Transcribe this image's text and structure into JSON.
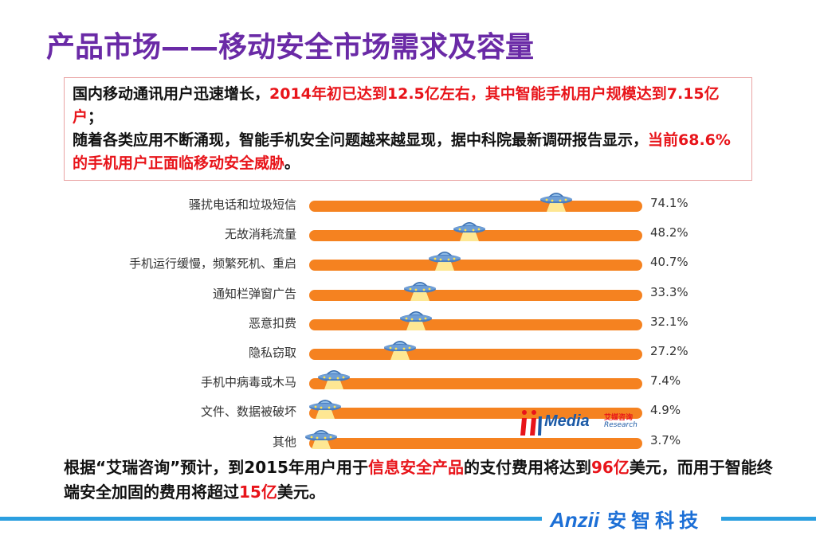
{
  "slide": {
    "title": "产品市场——移动安全市场需求及容量"
  },
  "intro": {
    "p1_black": "国内移动通讯用户迅速增长，",
    "p1_red": "2014年初已达到12.5亿左右，其中智能手机用户规模达到7.15亿户",
    "p1_end": "；",
    "p2_black": "随着各类应用不断涌现，智能手机安全问题越来越显现，据中科院最新调研报告显示，",
    "p2_red": "当前68.6%的手机用户正面临移动安全威胁",
    "p2_end": "。"
  },
  "chart_data": {
    "type": "bar",
    "categories": [
      "骚扰电话和垃圾短信",
      "无故消耗流量",
      "手机运行缓慢，频繁死机、重启",
      "通知栏弹窗广告",
      "恶意扣费",
      "隐私窃取",
      "手机中病毒或木马",
      "文件、数据被破坏",
      "其他"
    ],
    "values": [
      74.1,
      48.2,
      40.7,
      33.3,
      32.1,
      27.2,
      7.4,
      4.9,
      3.7
    ],
    "value_labels": [
      "74.1%",
      "48.2%",
      "40.7%",
      "33.3%",
      "32.1%",
      "27.2%",
      "7.4%",
      "4.9%",
      "3.7%"
    ],
    "title": "",
    "xlabel": "",
    "ylabel": "",
    "xlim": [
      0,
      100
    ],
    "bar_color": "#f58220"
  },
  "source_logo": {
    "word": "Media",
    "cn": "艾媒咨询",
    "en": "Research"
  },
  "footer": {
    "t1": "根据“艾瑞咨询”预计，到2015年用户用于",
    "t2_red": "信息安全产品",
    "t3": "的支付费用将达到",
    "t4_red": "96亿",
    "t5": "美元，而用于智能终端安全加固的费用将超过",
    "t6_red": "15亿",
    "t7": "美元。"
  },
  "brand": {
    "en": "Anzii",
    "cn": "安智科技"
  },
  "colors": {
    "title": "#6a2aa6",
    "accent_red": "#e8141a",
    "bar": "#f58220",
    "brand_blue": "#1c6fd6",
    "line_blue": "#2b9fe0"
  }
}
